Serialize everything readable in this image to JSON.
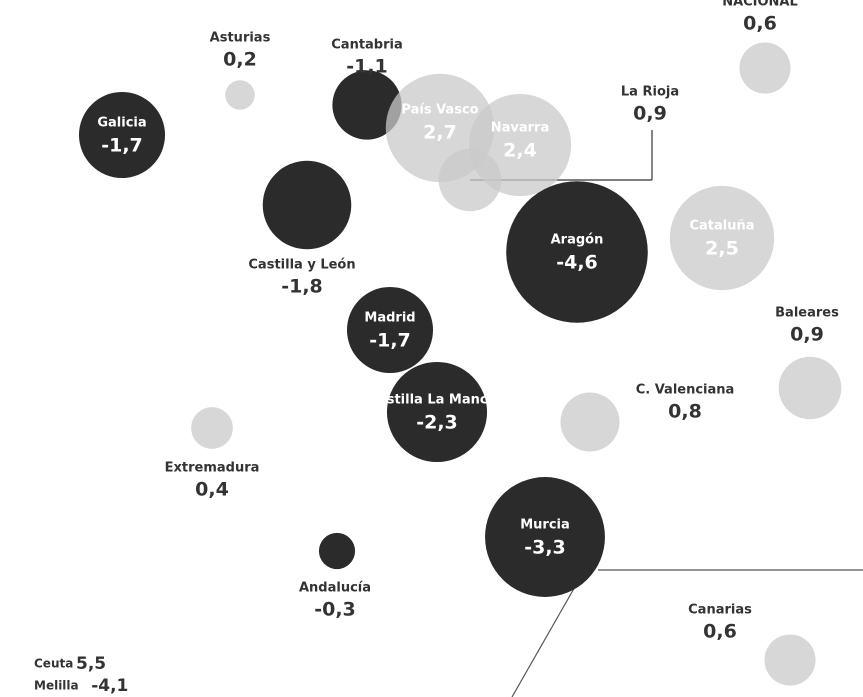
{
  "regions": [
    {
      "name": "Galicia",
      "value": -1.7,
      "value_label": "-1,7"
    },
    {
      "name": "Asturias",
      "value": 0.2,
      "value_label": "0,2"
    },
    {
      "name": "Cantabria",
      "value": -1.1,
      "value_label": "-1,1"
    },
    {
      "name": "País Vasco",
      "value": 2.7,
      "value_label": "2,7"
    },
    {
      "name": "Navarra",
      "value": 2.4,
      "value_label": "2,4"
    },
    {
      "name": "La Rioja",
      "value": 0.9,
      "value_label": "0,9"
    },
    {
      "name": "Aragón",
      "value": -4.6,
      "value_label": "-4,6"
    },
    {
      "name": "Cataluña",
      "value": 2.5,
      "value_label": "2,5"
    },
    {
      "name": "NACIONAL",
      "value": 0.6,
      "value_label": "0,6"
    },
    {
      "name": "Castilla y León",
      "value": -1.8,
      "value_label": "-1,8"
    },
    {
      "name": "Madrid",
      "value": -1.7,
      "value_label": "-1,7"
    },
    {
      "name": "Baleares",
      "value": 0.9,
      "value_label": "0,9"
    },
    {
      "name": "C. Valenciana",
      "value": 0.8,
      "value_label": "0,8"
    },
    {
      "name": "Castilla La Mancha",
      "value": -2.3,
      "value_label": "-2,3"
    },
    {
      "name": "Extremadura",
      "value": 0.4,
      "value_label": "0,4"
    },
    {
      "name": "Murcia",
      "value": -3.3,
      "value_label": "-3,3"
    },
    {
      "name": "Andalucía",
      "value": -0.3,
      "value_label": "-0,3"
    },
    {
      "name": "Canarias",
      "value": 0.6,
      "value_label": "0,6"
    }
  ],
  "small_print": [
    {
      "name": "Ceuta",
      "value": 5.5,
      "value_label": "5,5"
    },
    {
      "name": "Melilla",
      "value": -4.1,
      "value_label": "-4,1"
    }
  ]
}
